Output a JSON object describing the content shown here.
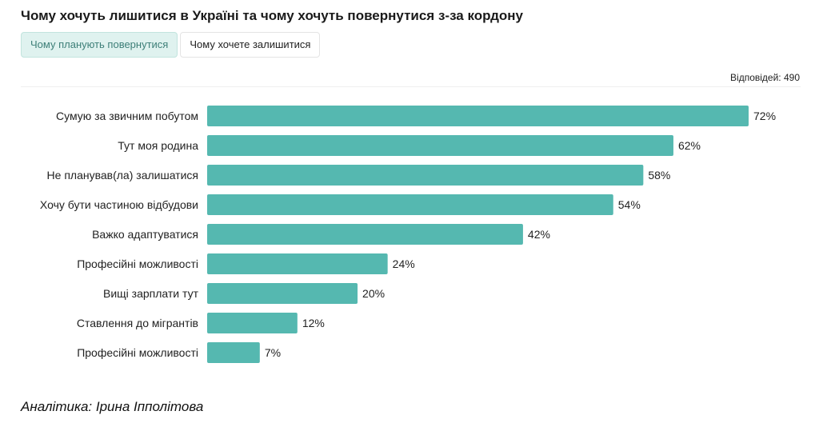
{
  "title": "Чому хочуть лишитися в Україні та чому хочуть повернутися з-за кордону",
  "tabs": [
    {
      "label": "Чому планують повернутися",
      "active": true
    },
    {
      "label": "Чому хочете залишитися",
      "active": false
    }
  ],
  "responses_label": "Відповідей: 490",
  "footer": "Аналітика: Ірина Іпполітова",
  "colors": {
    "bar": "#55b8b0",
    "tab_active_bg": "#dff2ef"
  },
  "chart_data": {
    "type": "bar",
    "orientation": "horizontal",
    "categories": [
      "Сумую за звичним побутом",
      "Тут моя родина",
      "Не планував(ла) залишатися",
      "Хочу бути частиною відбудови",
      "Важко адаптуватися",
      "Професійні можливості",
      "Вищі зарплати тут",
      "Ставлення до мігрантів",
      "Професійні можливості"
    ],
    "values": [
      72,
      62,
      58,
      54,
      42,
      24,
      20,
      12,
      7
    ],
    "value_labels": [
      "72%",
      "62%",
      "58%",
      "54%",
      "42%",
      "24%",
      "20%",
      "12%",
      "7%"
    ],
    "xlim": [
      0,
      72
    ],
    "grid": false,
    "legend": "none"
  }
}
